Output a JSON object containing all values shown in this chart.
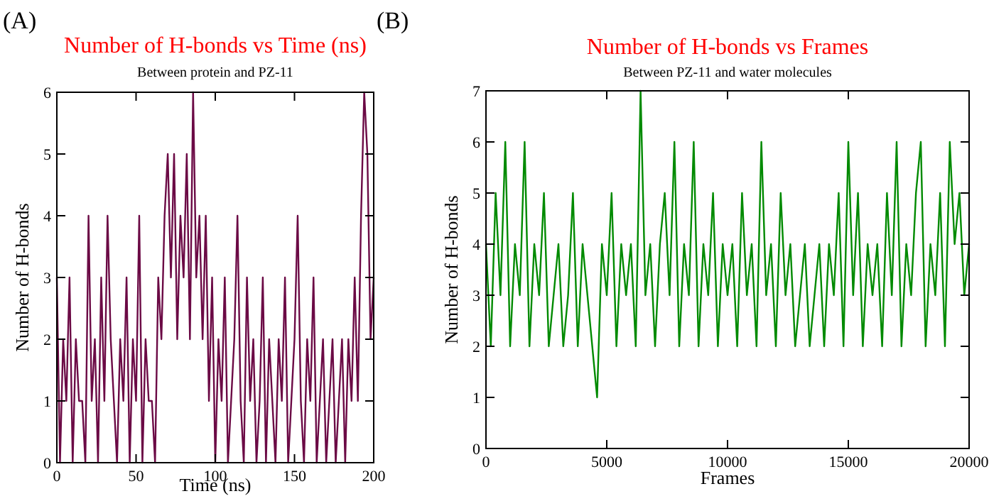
{
  "chart_data": [
    {
      "type": "line",
      "title": "Number of H-bonds vs Time (ns)",
      "subtitle": "Between protein and PZ-11",
      "xlabel": "Time (ns)",
      "ylabel": "Number of H-bonds",
      "annotations": [
        "(A)"
      ],
      "xlim": [
        0,
        200
      ],
      "xticks": [
        0,
        50,
        100,
        150,
        200
      ],
      "ylim": [
        0,
        6
      ],
      "yticks": [
        0,
        1,
        2,
        3,
        4,
        5,
        6
      ],
      "x": [
        0,
        2,
        4,
        6,
        8,
        10,
        12,
        14,
        16,
        18,
        20,
        22,
        24,
        26,
        28,
        30,
        32,
        34,
        36,
        38,
        40,
        42,
        44,
        46,
        48,
        50,
        52,
        54,
        56,
        58,
        60,
        62,
        64,
        66,
        68,
        70,
        72,
        74,
        76,
        78,
        80,
        82,
        84,
        86,
        88,
        90,
        92,
        94,
        96,
        98,
        100,
        102,
        104,
        106,
        108,
        110,
        112,
        114,
        116,
        118,
        120,
        122,
        124,
        126,
        128,
        130,
        132,
        134,
        136,
        138,
        140,
        142,
        144,
        146,
        148,
        150,
        152,
        154,
        156,
        158,
        160,
        162,
        164,
        166,
        168,
        170,
        172,
        174,
        176,
        178,
        180,
        182,
        184,
        186,
        188,
        190,
        192,
        194,
        196,
        198,
        200
      ],
      "series": [
        {
          "color": "#6b0a45",
          "values": [
            3,
            0,
            2,
            1,
            3,
            0,
            2,
            1,
            1,
            0,
            4,
            1,
            2,
            0,
            3,
            1,
            4,
            2,
            1,
            0,
            2,
            1,
            3,
            0,
            2,
            1,
            4,
            0,
            2,
            1,
            1,
            0,
            3,
            2,
            4,
            5,
            3,
            5,
            2,
            4,
            3,
            5,
            2,
            6,
            3,
            4,
            2,
            4,
            1,
            3,
            0,
            2,
            1,
            3,
            0,
            1,
            2,
            4,
            1,
            0,
            3,
            1,
            2,
            0,
            1,
            3,
            0,
            2,
            1,
            0,
            2,
            1,
            3,
            0,
            1,
            2,
            4,
            1,
            0,
            2,
            1,
            3,
            0,
            1,
            2,
            0,
            1,
            2,
            0,
            1,
            2,
            0,
            2,
            1,
            3,
            1,
            4,
            6,
            5,
            2,
            3
          ]
        }
      ]
    },
    {
      "type": "line",
      "title": "Number of H-bonds vs Frames",
      "subtitle": "Between PZ-11 and water molecules",
      "xlabel": "Frames",
      "ylabel": "Number of H-bonds",
      "annotations": [
        "(B)"
      ],
      "xlim": [
        0,
        20000
      ],
      "xticks": [
        0,
        5000,
        10000,
        15000,
        20000
      ],
      "ylim": [
        0,
        7
      ],
      "yticks": [
        0,
        1,
        2,
        3,
        4,
        5,
        6,
        7
      ],
      "x": [
        0,
        200,
        400,
        600,
        800,
        1000,
        1200,
        1400,
        1600,
        1800,
        2000,
        2200,
        2400,
        2600,
        2800,
        3000,
        3200,
        3400,
        3600,
        3800,
        4000,
        4200,
        4400,
        4600,
        4800,
        5000,
        5200,
        5400,
        5600,
        5800,
        6000,
        6200,
        6400,
        6600,
        6800,
        7000,
        7200,
        7400,
        7600,
        7800,
        8000,
        8200,
        8400,
        8600,
        8800,
        9000,
        9200,
        9400,
        9600,
        9800,
        10000,
        10200,
        10400,
        10600,
        10800,
        11000,
        11200,
        11400,
        11600,
        11800,
        12000,
        12200,
        12400,
        12600,
        12800,
        13000,
        13200,
        13400,
        13600,
        13800,
        14000,
        14200,
        14400,
        14600,
        14800,
        15000,
        15200,
        15400,
        15600,
        15800,
        16000,
        16200,
        16400,
        16600,
        16800,
        17000,
        17200,
        17400,
        17600,
        17800,
        18000,
        18200,
        18400,
        18600,
        18800,
        19000,
        19200,
        19400,
        19600,
        19800,
        20000
      ],
      "series": [
        {
          "color": "#008a00",
          "values": [
            4,
            2,
            5,
            3,
            6,
            2,
            4,
            3,
            6,
            2,
            4,
            3,
            5,
            2,
            3,
            4,
            2,
            3,
            5,
            2,
            4,
            3,
            2,
            1,
            4,
            3,
            5,
            2,
            4,
            3,
            4,
            2,
            7,
            3,
            4,
            2,
            4,
            5,
            3,
            6,
            2,
            4,
            3,
            6,
            2,
            4,
            3,
            5,
            2,
            4,
            3,
            4,
            2,
            5,
            3,
            4,
            2,
            6,
            3,
            4,
            2,
            5,
            3,
            4,
            2,
            3,
            4,
            2,
            3,
            4,
            2,
            4,
            3,
            5,
            2,
            6,
            3,
            5,
            2,
            4,
            3,
            4,
            2,
            5,
            3,
            6,
            2,
            4,
            3,
            5,
            6,
            2,
            4,
            3,
            5,
            2,
            6,
            4,
            5,
            3,
            4
          ]
        }
      ]
    }
  ]
}
